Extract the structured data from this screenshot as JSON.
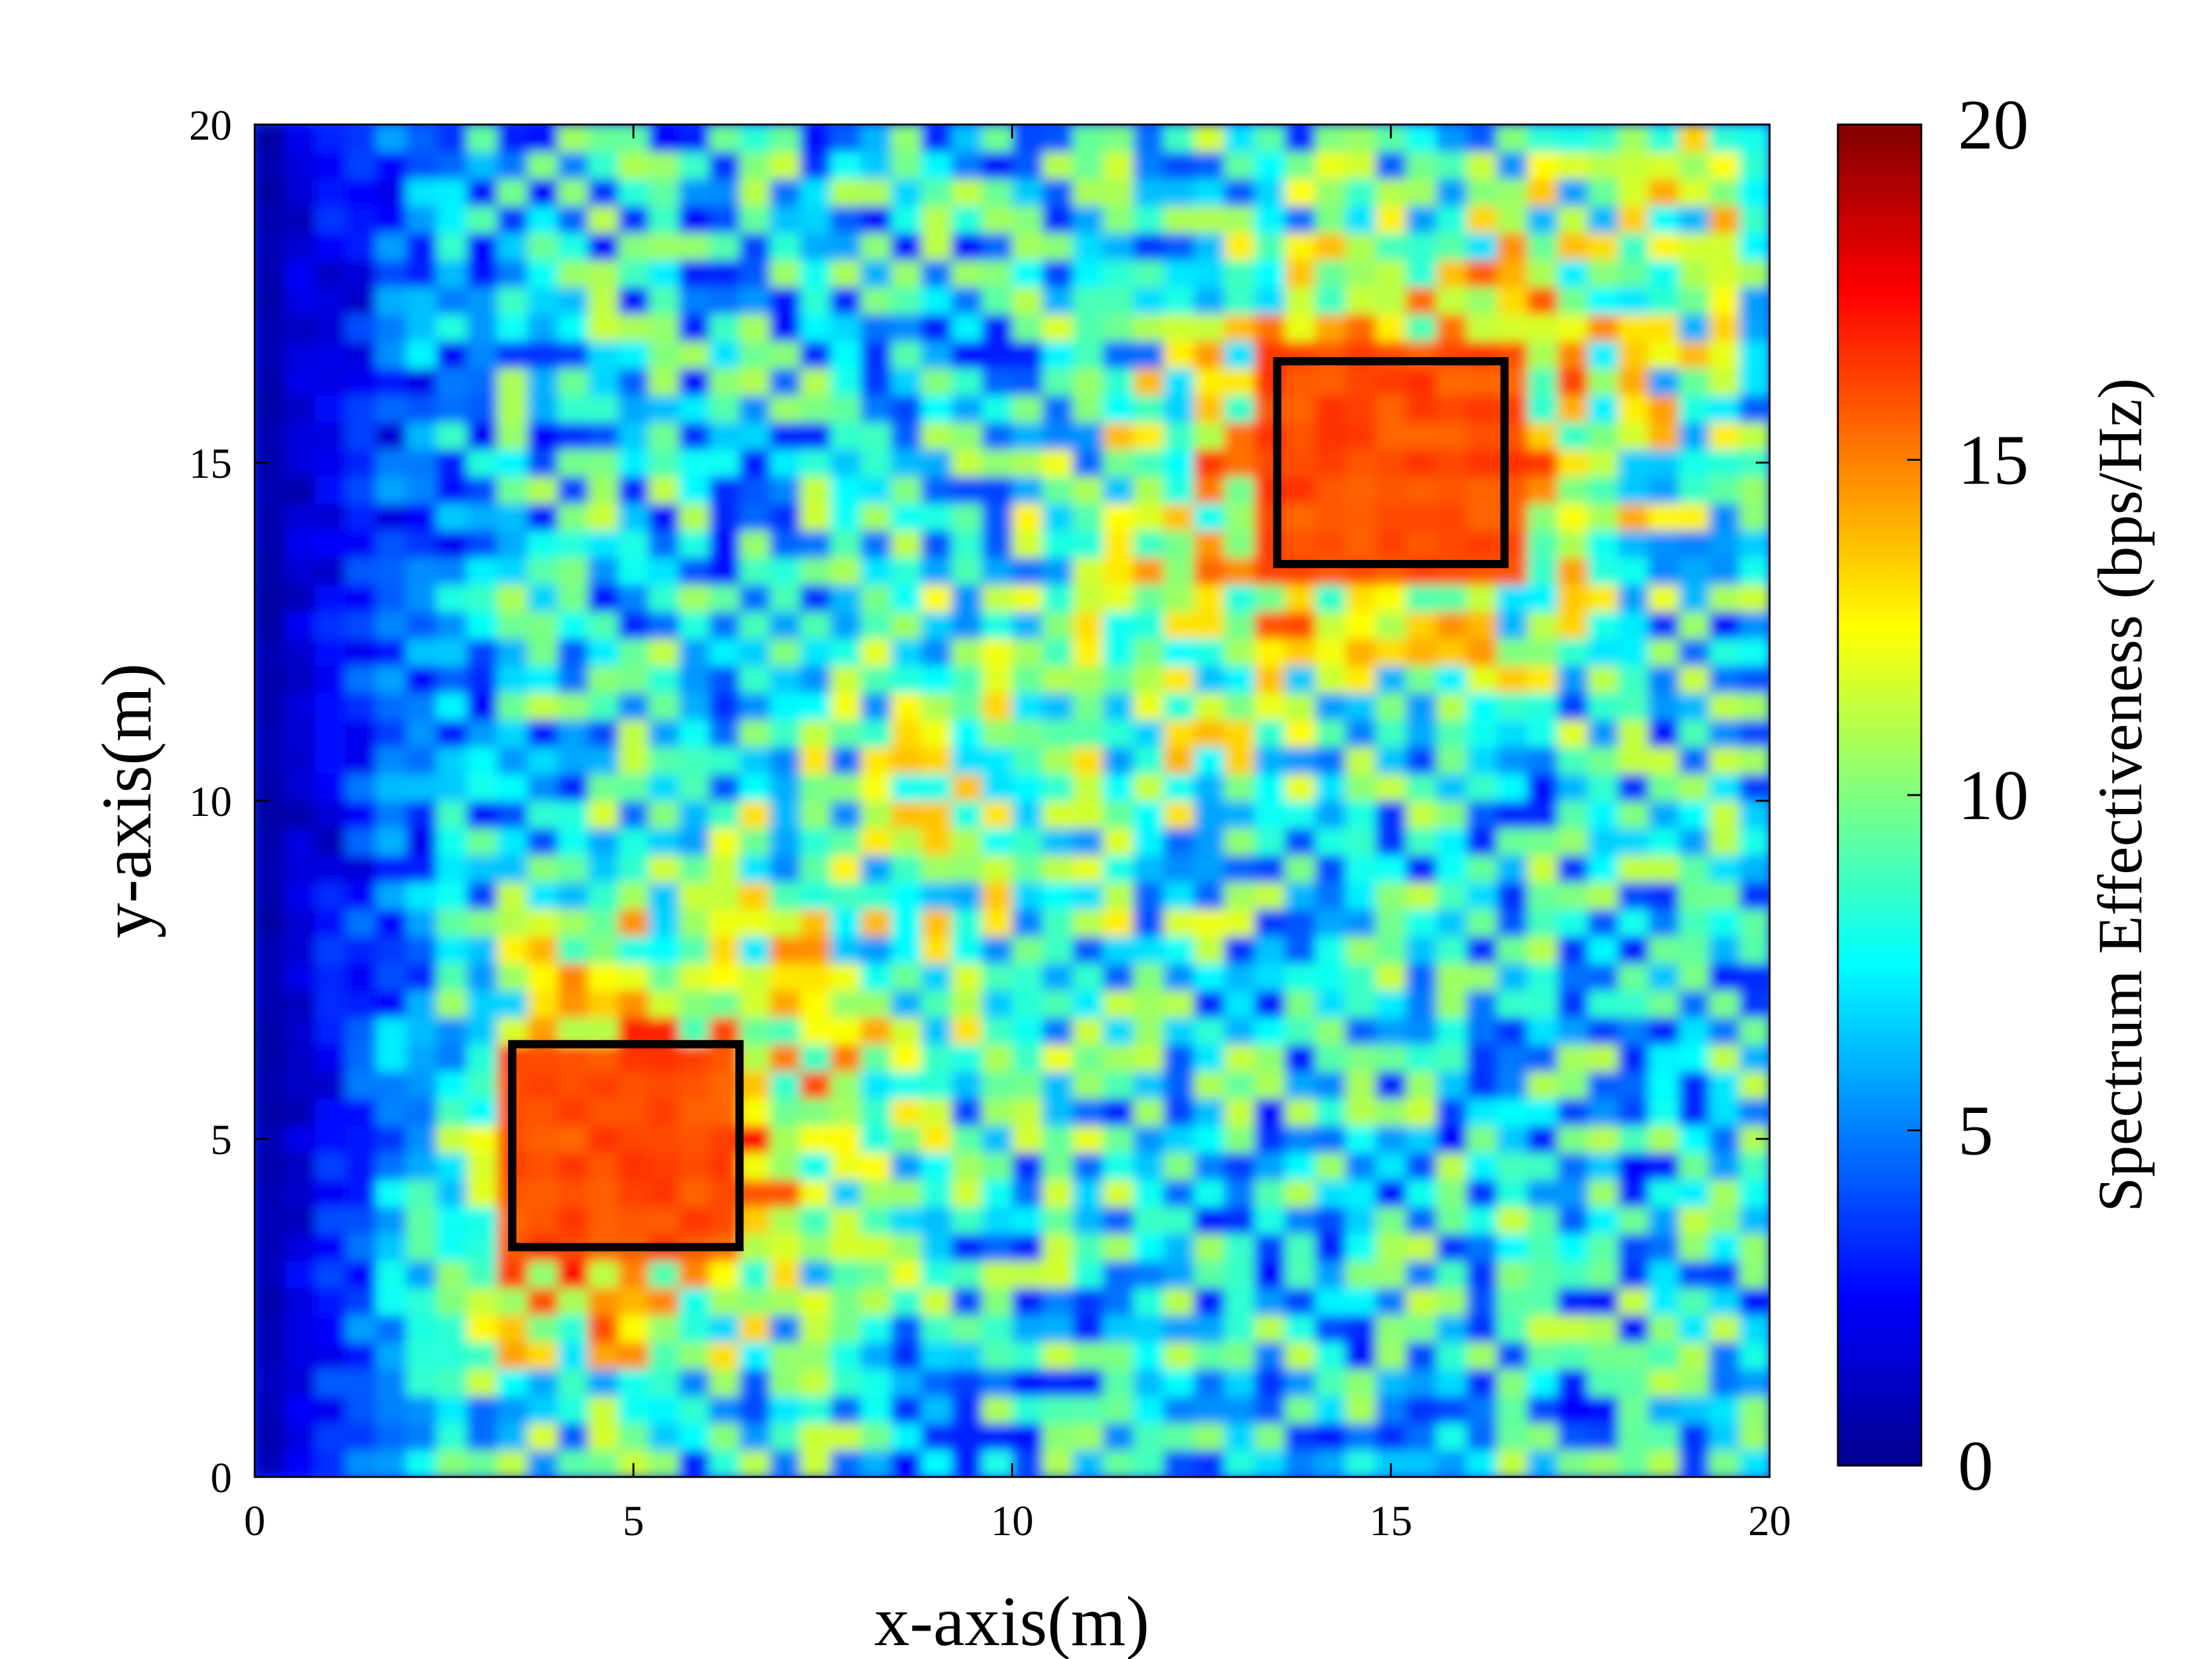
{
  "chart_data": {
    "type": "heatmap",
    "title": "",
    "xlabel": "x-axis(m)",
    "ylabel": "y-axis(m)",
    "xlim": [
      0,
      20
    ],
    "ylim": [
      0,
      20
    ],
    "x_ticks": [
      "0",
      "5",
      "10",
      "15",
      "20"
    ],
    "y_ticks": [
      "0",
      "5",
      "10",
      "15",
      "20"
    ],
    "colormap": "jet",
    "grid": false,
    "colorbar": {
      "label": "Spectrum Effectiveness (bps/Hz)",
      "range": [
        0,
        20
      ],
      "ticks": [
        "0",
        "5",
        "10",
        "15",
        "20"
      ]
    },
    "field_description": {
      "grid_resolution_m": 0.4,
      "left_edge_value_approx": 0.5,
      "typical_background_value_approx": 7,
      "diagonal_band_value_approx": 10,
      "hotspot_value_approx": 16
    },
    "annotations": [
      {
        "type": "rectangle",
        "x": [
          3.4,
          6.4
        ],
        "y": [
          3.4,
          6.4
        ],
        "edge_color": "#000000",
        "value_inside_approx": 16
      },
      {
        "type": "rectangle",
        "x": [
          13.5,
          16.5
        ],
        "y": [
          13.5,
          16.5
        ],
        "edge_color": "#000000",
        "value_inside_approx": 16
      }
    ]
  }
}
